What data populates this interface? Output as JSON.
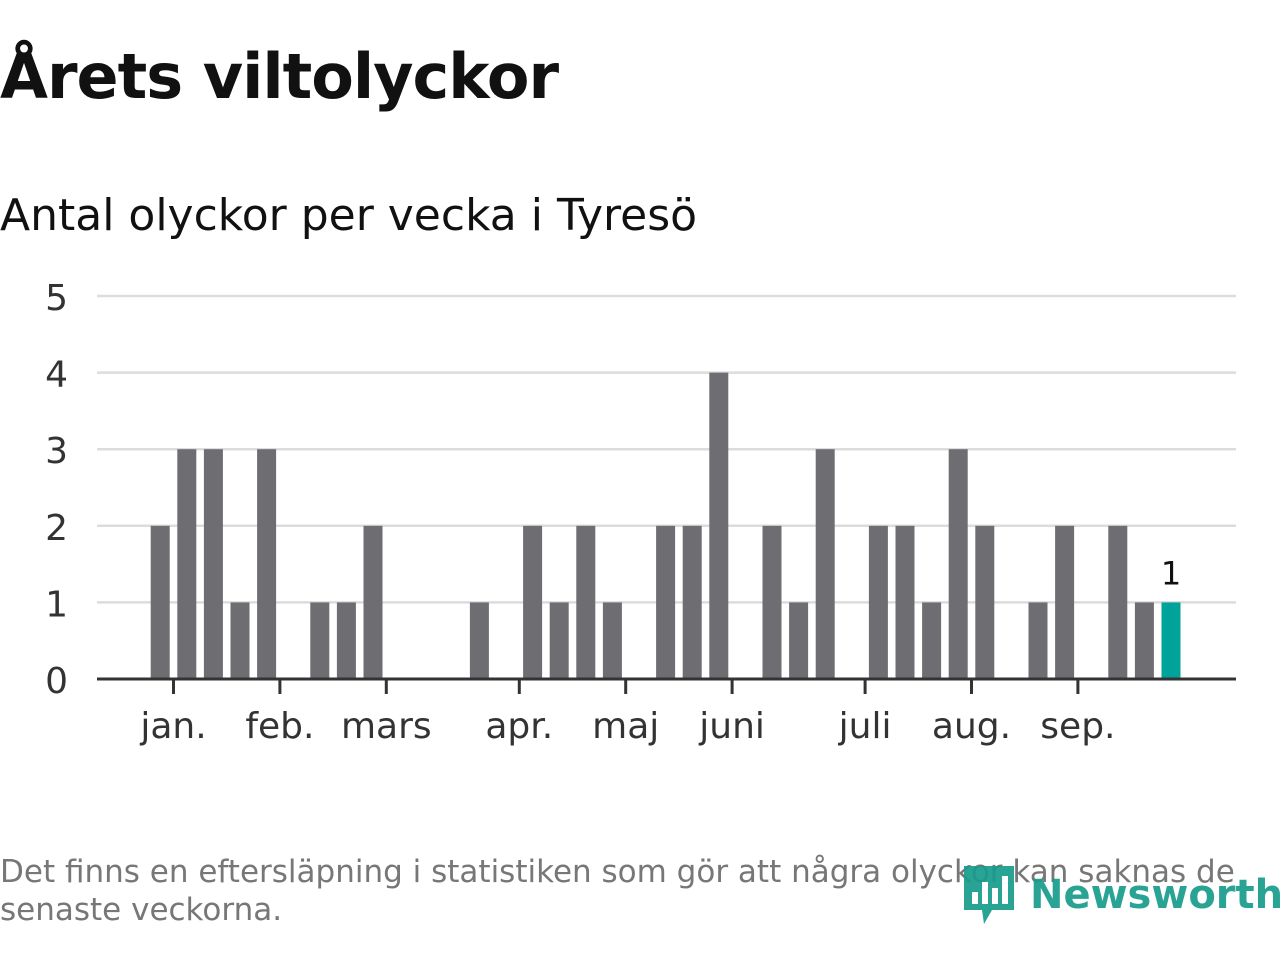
{
  "title": "Årets viltolyckor",
  "subtitle": "Antal olyckor per vecka i Tyresö",
  "footnote": "Det finns en eftersläpning i statistiken som gör att några olyckor kan saknas de senaste veckorna.",
  "brand": {
    "name": "Newsworthy",
    "logo_icon": "newsworthy-chart-icon",
    "color": "#179c8c"
  },
  "colors": {
    "bar": "#6e6d72",
    "highlight": "#00a39a",
    "grid": "#dcdcdc",
    "axis": "#333333",
    "text": "#111111"
  },
  "chart_data": {
    "type": "bar",
    "title": "Årets viltolyckor",
    "subtitle": "Antal olyckor per vecka i Tyresö",
    "xlabel": "",
    "ylabel": "",
    "ylim": [
      0,
      5
    ],
    "yticks": [
      0,
      1,
      2,
      3,
      4,
      5
    ],
    "grid": true,
    "legend": "none",
    "x": [
      2,
      3,
      4,
      5,
      6,
      7,
      8,
      9,
      10,
      11,
      12,
      13,
      14,
      15,
      16,
      17,
      18,
      19,
      20,
      21,
      22,
      23,
      24,
      25,
      26,
      27,
      28,
      29,
      30,
      31,
      32,
      33,
      34,
      35,
      36,
      37,
      38,
      39,
      40,
      41
    ],
    "values": [
      2,
      3,
      3,
      1,
      3,
      0,
      1,
      1,
      2,
      0,
      0,
      0,
      1,
      0,
      2,
      1,
      2,
      1,
      0,
      2,
      2,
      4,
      0,
      2,
      1,
      3,
      0,
      2,
      2,
      1,
      3,
      2,
      0,
      1,
      2,
      0,
      2,
      1,
      1,
      0
    ],
    "highlight_index": 38,
    "highlight_label": "1",
    "month_ticks": [
      {
        "label": "jan.",
        "x": 2.5
      },
      {
        "label": "feb.",
        "x": 6.5
      },
      {
        "label": "mars",
        "x": 10.5
      },
      {
        "label": "apr.",
        "x": 15.5
      },
      {
        "label": "maj",
        "x": 19.5
      },
      {
        "label": "juni",
        "x": 23.5
      },
      {
        "label": "juli",
        "x": 28.5
      },
      {
        "label": "aug.",
        "x": 32.5
      },
      {
        "label": "sep.",
        "x": 36.5
      }
    ]
  }
}
